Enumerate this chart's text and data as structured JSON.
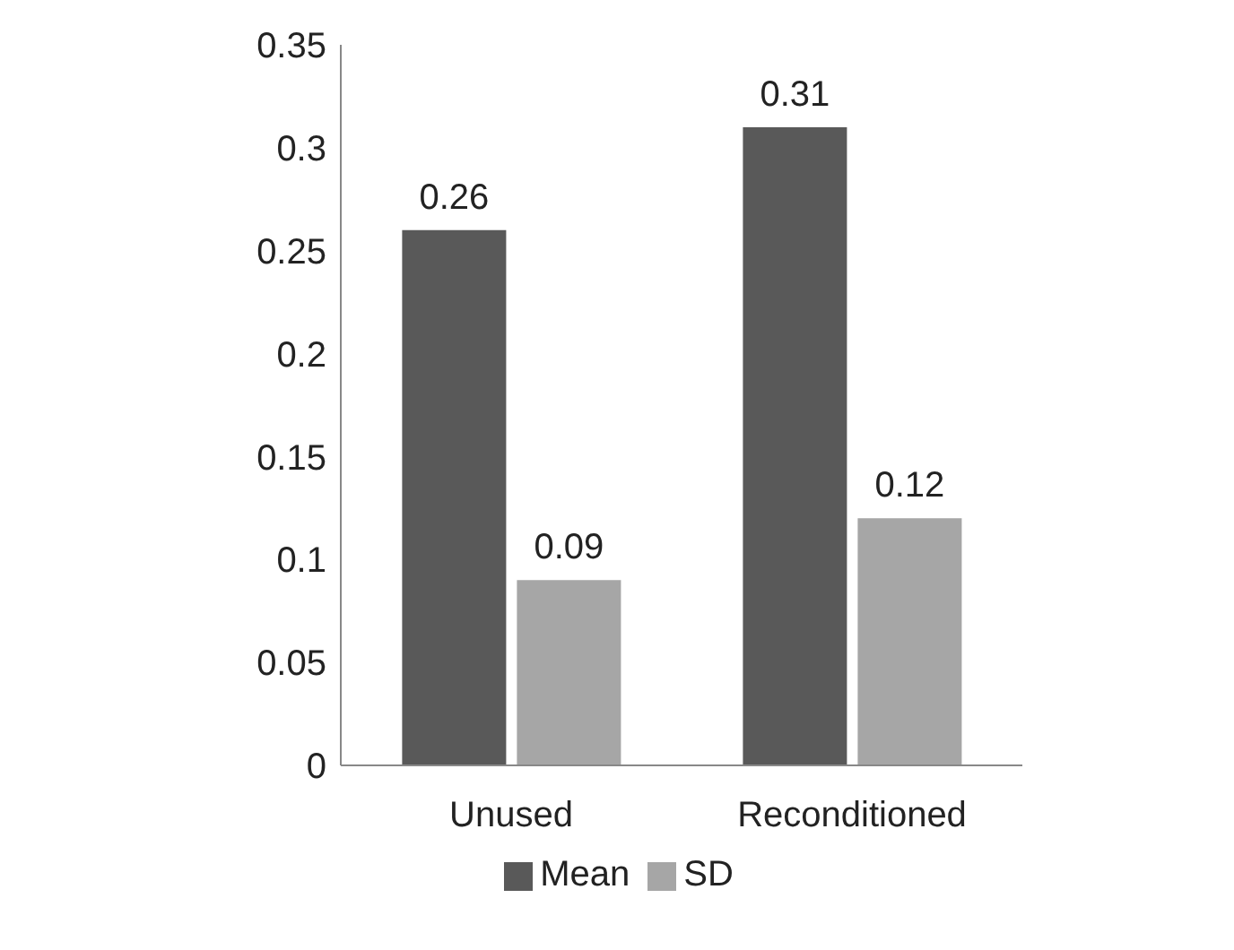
{
  "chart_data": {
    "type": "bar",
    "categories": [
      "Unused",
      "Reconditioned"
    ],
    "series": [
      {
        "name": "Mean",
        "color": "#595959",
        "values": [
          0.26,
          0.31
        ]
      },
      {
        "name": "SD",
        "color": "#a6a6a6",
        "values": [
          0.09,
          0.12
        ]
      }
    ],
    "ylim": [
      0,
      0.35
    ],
    "yticks": [
      0,
      0.05,
      0.1,
      0.15,
      0.2,
      0.25,
      0.3,
      0.35
    ],
    "grid": false,
    "legend": "bottom",
    "data_labels": true
  }
}
